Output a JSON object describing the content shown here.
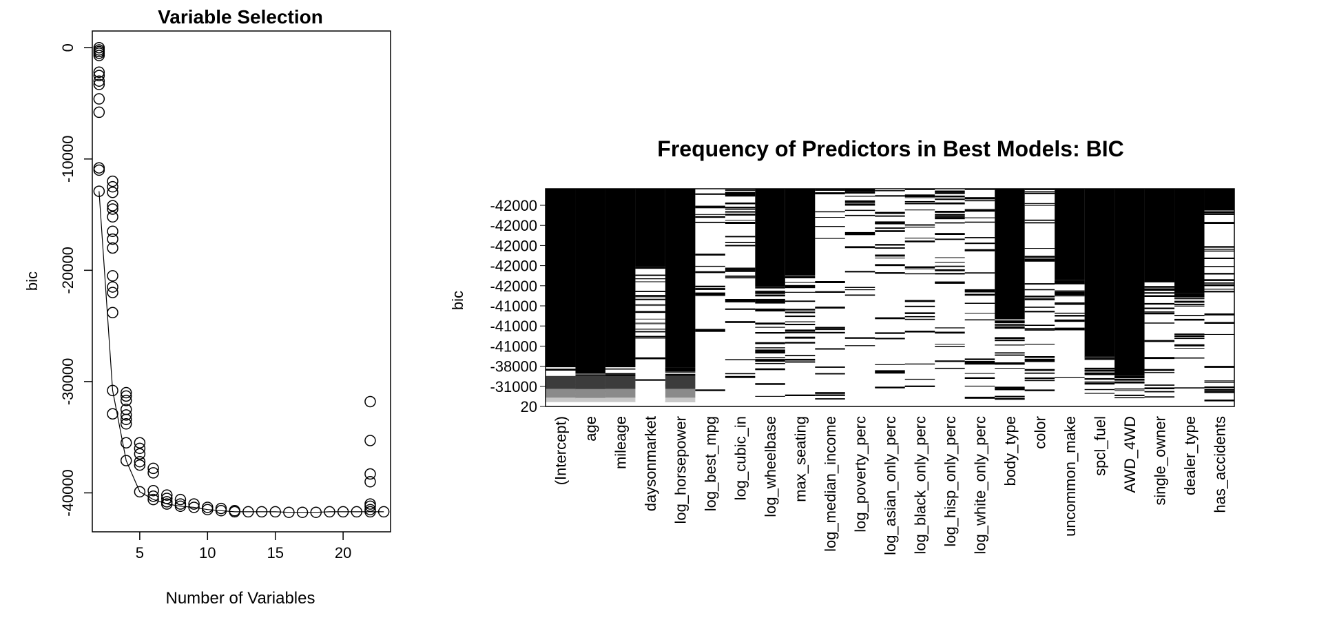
{
  "chart_data": [
    {
      "type": "scatter",
      "title": "Variable Selection",
      "xlabel": "Number of Variables",
      "ylabel": "bic",
      "xlim": [
        1.5,
        23.5
      ],
      "ylim": [
        -43500,
        1500
      ],
      "x_ticks": [
        5,
        10,
        15,
        20
      ],
      "y_ticks": [
        0,
        -10000,
        -20000,
        -30000,
        -40000
      ],
      "points": [
        [
          2,
          0
        ],
        [
          2,
          -200
        ],
        [
          2,
          -350
        ],
        [
          2,
          -500
        ],
        [
          2,
          -700
        ],
        [
          2,
          -2200
        ],
        [
          2,
          -2500
        ],
        [
          2,
          -3000
        ],
        [
          2,
          -3300
        ],
        [
          2,
          -4600
        ],
        [
          2,
          -5800
        ],
        [
          2,
          -10800
        ],
        [
          2,
          -11000
        ],
        [
          2,
          -12900
        ],
        [
          3,
          -12000
        ],
        [
          3,
          -12500
        ],
        [
          3,
          -13000
        ],
        [
          3,
          -14200
        ],
        [
          3,
          -14500
        ],
        [
          3,
          -15200
        ],
        [
          3,
          -16500
        ],
        [
          3,
          -17200
        ],
        [
          3,
          -18000
        ],
        [
          3,
          -20500
        ],
        [
          3,
          -21500
        ],
        [
          3,
          -22000
        ],
        [
          3,
          -23800
        ],
        [
          3,
          -30800
        ],
        [
          3,
          -32900
        ],
        [
          4,
          -31000
        ],
        [
          4,
          -31300
        ],
        [
          4,
          -31700
        ],
        [
          4,
          -32500
        ],
        [
          4,
          -33000
        ],
        [
          4,
          -33400
        ],
        [
          4,
          -33800
        ],
        [
          4,
          -35500
        ],
        [
          4,
          -37100
        ],
        [
          5,
          -35500
        ],
        [
          5,
          -36000
        ],
        [
          5,
          -36500
        ],
        [
          5,
          -37200
        ],
        [
          5,
          -37500
        ],
        [
          5,
          -39900
        ],
        [
          6,
          -37800
        ],
        [
          6,
          -38200
        ],
        [
          6,
          -39800
        ],
        [
          6,
          -40300
        ],
        [
          6,
          -40600
        ],
        [
          7,
          -40200
        ],
        [
          7,
          -40500
        ],
        [
          7,
          -40800
        ],
        [
          7,
          -41000
        ],
        [
          8,
          -40600
        ],
        [
          8,
          -41000
        ],
        [
          8,
          -41200
        ],
        [
          9,
          -41000
        ],
        [
          9,
          -41300
        ],
        [
          10,
          -41300
        ],
        [
          10,
          -41500
        ],
        [
          11,
          -41400
        ],
        [
          11,
          -41600
        ],
        [
          12,
          -41600
        ],
        [
          12,
          -41700
        ],
        [
          13,
          -41700
        ],
        [
          14,
          -41700
        ],
        [
          15,
          -41700
        ],
        [
          16,
          -41750
        ],
        [
          17,
          -41750
        ],
        [
          18,
          -41750
        ],
        [
          19,
          -41700
        ],
        [
          20,
          -41700
        ],
        [
          21,
          -41700
        ],
        [
          22,
          -31800
        ],
        [
          22,
          -35300
        ],
        [
          22,
          -38300
        ],
        [
          22,
          -39000
        ],
        [
          22,
          -41000
        ],
        [
          22,
          -41200
        ],
        [
          22,
          -41500
        ],
        [
          22,
          -41700
        ],
        [
          23,
          -41700
        ]
      ],
      "line": [
        [
          2,
          -12900
        ],
        [
          3,
          -30800
        ],
        [
          4,
          -37100
        ],
        [
          5,
          -39900
        ],
        [
          6,
          -40600
        ],
        [
          7,
          -41000
        ],
        [
          8,
          -41200
        ],
        [
          9,
          -41300
        ],
        [
          10,
          -41500
        ],
        [
          11,
          -41600
        ],
        [
          12,
          -41700
        ],
        [
          13,
          -41700
        ],
        [
          14,
          -41700
        ],
        [
          15,
          -41700
        ],
        [
          16,
          -41750
        ],
        [
          17,
          -41750
        ],
        [
          18,
          -41750
        ],
        [
          19,
          -41700
        ],
        [
          20,
          -41700
        ],
        [
          21,
          -41700
        ],
        [
          22,
          -41700
        ],
        [
          23,
          -41700
        ]
      ]
    },
    {
      "type": "heatmap",
      "title": "Frequency of Predictors in Best Models: BIC",
      "ylabel": "bic",
      "y_tick_labels": [
        "-42000",
        "-42000",
        "-42000",
        "-42000",
        "-42000",
        "-41000",
        "-41000",
        "-41000",
        "-38000",
        "-31000",
        "20"
      ],
      "predictors": [
        "(Intercept)",
        "age",
        "mileage",
        "daysonmarket",
        "log_horsepower",
        "log_best_mpg",
        "log_cubic_in",
        "log_wheelbase",
        "max_seating",
        "log_median_income",
        "log_poverty_perc",
        "log_asian_only_perc",
        "log_black_only_perc",
        "log_hisp_only_perc",
        "log_white_only_perc",
        "body_type",
        "color",
        "uncommon_make",
        "spcl_fuel",
        "AWD_4WD",
        "single_owner",
        "dealer_type",
        "has_accidents"
      ],
      "inclusion": [
        {
          "solid": 0.82,
          "stripe": 0.0
        },
        {
          "solid": 0.85,
          "stripe": 0.1
        },
        {
          "solid": 0.82,
          "stripe": 0.1
        },
        {
          "solid": 0.36,
          "stripe": 0.3
        },
        {
          "solid": 0.82,
          "stripe": 0.15
        },
        {
          "solid": 0.0,
          "stripe": 0.22
        },
        {
          "solid": 0.0,
          "stripe": 0.45
        },
        {
          "solid": 0.45,
          "stripe": 0.35
        },
        {
          "solid": 0.4,
          "stripe": 0.3
        },
        {
          "solid": 0.0,
          "stripe": 0.3
        },
        {
          "solid": 0.0,
          "stripe": 0.3
        },
        {
          "solid": 0.0,
          "stripe": 0.35
        },
        {
          "solid": 0.0,
          "stripe": 0.35
        },
        {
          "solid": 0.0,
          "stripe": 0.38
        },
        {
          "solid": 0.0,
          "stripe": 0.38
        },
        {
          "solid": 0.6,
          "stripe": 0.25
        },
        {
          "solid": 0.0,
          "stripe": 0.45
        },
        {
          "solid": 0.42,
          "stripe": 0.3
        },
        {
          "solid": 0.77,
          "stripe": 0.2
        },
        {
          "solid": 0.86,
          "stripe": 0.15
        },
        {
          "solid": 0.43,
          "stripe": 0.3
        },
        {
          "solid": 0.48,
          "stripe": 0.3
        },
        {
          "solid": 0.1,
          "stripe": 0.4
        }
      ]
    }
  ]
}
